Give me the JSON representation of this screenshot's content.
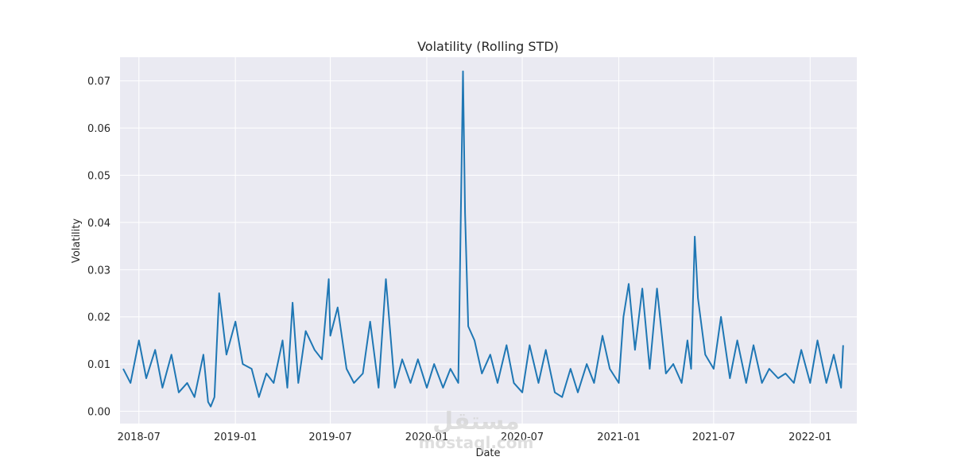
{
  "chart_data": {
    "type": "line",
    "title": "Volatility (Rolling STD)",
    "xlabel": "Date",
    "ylabel": "Volatility",
    "x_range": [
      "2018-05-26",
      "2022-03-31"
    ],
    "ylim": [
      -0.0026,
      0.075
    ],
    "x_ticks": [
      "2018-07",
      "2019-01",
      "2019-07",
      "2020-01",
      "2020-07",
      "2021-01",
      "2021-07",
      "2022-01"
    ],
    "y_ticks": [
      "0.00",
      "0.01",
      "0.02",
      "0.03",
      "0.04",
      "0.05",
      "0.06",
      "0.07"
    ],
    "grid": true,
    "series_color": "#1f77b4",
    "background_color": "#eaeaf2",
    "series": [
      {
        "name": "",
        "x": [
          "2018-06-01",
          "2018-06-15",
          "2018-07-01",
          "2018-07-15",
          "2018-08-01",
          "2018-08-15",
          "2018-09-01",
          "2018-09-15",
          "2018-10-01",
          "2018-10-15",
          "2018-11-01",
          "2018-11-10",
          "2018-11-15",
          "2018-11-22",
          "2018-12-01",
          "2018-12-15",
          "2019-01-01",
          "2019-01-15",
          "2019-02-01",
          "2019-02-15",
          "2019-03-01",
          "2019-03-15",
          "2019-04-01",
          "2019-04-10",
          "2019-04-20",
          "2019-05-01",
          "2019-05-15",
          "2019-06-01",
          "2019-06-15",
          "2019-06-28",
          "2019-07-01",
          "2019-07-15",
          "2019-08-01",
          "2019-08-15",
          "2019-09-01",
          "2019-09-15",
          "2019-10-01",
          "2019-10-15",
          "2019-11-01",
          "2019-11-15",
          "2019-12-01",
          "2019-12-15",
          "2020-01-01",
          "2020-01-15",
          "2020-02-01",
          "2020-02-15",
          "2020-03-01",
          "2020-03-10",
          "2020-03-14",
          "2020-03-20",
          "2020-04-01",
          "2020-04-15",
          "2020-05-01",
          "2020-05-15",
          "2020-06-01",
          "2020-06-15",
          "2020-07-01",
          "2020-07-15",
          "2020-08-01",
          "2020-08-15",
          "2020-09-01",
          "2020-09-15",
          "2020-10-01",
          "2020-10-15",
          "2020-11-01",
          "2020-11-15",
          "2020-12-01",
          "2020-12-15",
          "2021-01-01",
          "2021-01-10",
          "2021-01-20",
          "2021-02-01",
          "2021-02-15",
          "2021-03-01",
          "2021-03-15",
          "2021-04-01",
          "2021-04-15",
          "2021-05-01",
          "2021-05-12",
          "2021-05-19",
          "2021-05-26",
          "2021-06-01",
          "2021-06-15",
          "2021-07-01",
          "2021-07-15",
          "2021-08-01",
          "2021-08-15",
          "2021-09-01",
          "2021-09-15",
          "2021-10-01",
          "2021-10-15",
          "2021-11-01",
          "2021-11-15",
          "2021-12-01",
          "2021-12-15",
          "2022-01-01",
          "2022-01-15",
          "2022-02-01",
          "2022-02-15",
          "2022-03-01",
          "2022-03-05"
        ],
        "values": [
          0.009,
          0.006,
          0.015,
          0.007,
          0.013,
          0.005,
          0.012,
          0.004,
          0.006,
          0.003,
          0.012,
          0.002,
          0.001,
          0.003,
          0.025,
          0.012,
          0.019,
          0.01,
          0.009,
          0.003,
          0.008,
          0.006,
          0.015,
          0.005,
          0.023,
          0.006,
          0.017,
          0.013,
          0.011,
          0.028,
          0.016,
          0.022,
          0.009,
          0.006,
          0.008,
          0.019,
          0.005,
          0.028,
          0.005,
          0.011,
          0.006,
          0.011,
          0.005,
          0.01,
          0.005,
          0.009,
          0.006,
          0.072,
          0.042,
          0.018,
          0.015,
          0.008,
          0.012,
          0.006,
          0.014,
          0.006,
          0.004,
          0.014,
          0.006,
          0.013,
          0.004,
          0.003,
          0.009,
          0.004,
          0.01,
          0.006,
          0.016,
          0.009,
          0.006,
          0.02,
          0.027,
          0.013,
          0.026,
          0.009,
          0.026,
          0.008,
          0.01,
          0.006,
          0.015,
          0.009,
          0.037,
          0.024,
          0.012,
          0.009,
          0.02,
          0.007,
          0.015,
          0.006,
          0.014,
          0.006,
          0.009,
          0.007,
          0.008,
          0.006,
          0.013,
          0.006,
          0.015,
          0.006,
          0.012,
          0.005,
          0.014
        ]
      }
    ]
  },
  "watermark": {
    "arabic": "مستقل",
    "latin": "mostaql.com"
  }
}
